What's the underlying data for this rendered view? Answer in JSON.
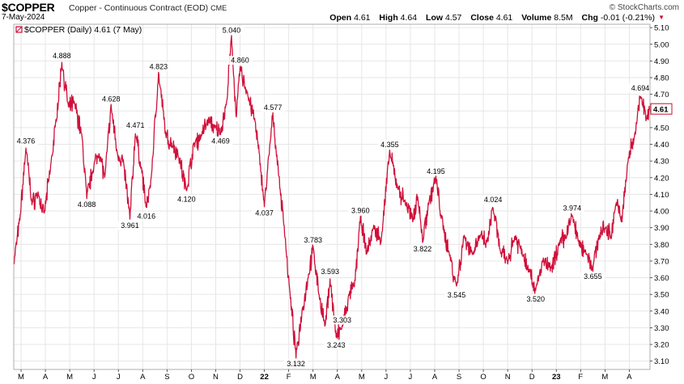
{
  "header": {
    "symbol": "$COPPER",
    "description": "Copper - Continuous Contract (EOD)",
    "exchange": "CME",
    "brand": "© StockCharts.com",
    "date": "7-May-2024",
    "ohlc": {
      "open_label": "Open",
      "open": "4.61",
      "high_label": "High",
      "high": "4.64",
      "low_label": "Low",
      "low": "4.57",
      "close_label": "Close",
      "close": "4.61",
      "volume_label": "Volume",
      "volume": "8.5M",
      "chg_label": "Chg",
      "chg": "-0.01 (-0.21%)"
    }
  },
  "legend": "$COPPER (Daily) 4.61 (7 May)",
  "colors": {
    "line": "#d0103a",
    "grid": "#e6e6e6",
    "axis": "#000000",
    "last_box": "#c8102e"
  },
  "chart_data": {
    "type": "line",
    "series": [
      {
        "name": "$COPPER",
        "anchors": [
          {
            "x": 0.0,
            "y": 3.68
          },
          {
            "x": 0.5,
            "y": 3.95
          },
          {
            "x": 1.0,
            "y": 4.376
          },
          {
            "x": 1.5,
            "y": 4.05
          },
          {
            "x": 2.0,
            "y": 4.1
          },
          {
            "x": 2.5,
            "y": 3.98
          },
          {
            "x": 3.0,
            "y": 4.25
          },
          {
            "x": 3.5,
            "y": 4.55
          },
          {
            "x": 3.95,
            "y": 4.888
          },
          {
            "x": 4.5,
            "y": 4.62
          },
          {
            "x": 5.0,
            "y": 4.65
          },
          {
            "x": 5.6,
            "y": 4.45
          },
          {
            "x": 6.0,
            "y": 4.088
          },
          {
            "x": 6.5,
            "y": 4.25
          },
          {
            "x": 7.0,
            "y": 4.35
          },
          {
            "x": 7.5,
            "y": 4.2
          },
          {
            "x": 8.0,
            "y": 4.628
          },
          {
            "x": 8.5,
            "y": 4.35
          },
          {
            "x": 9.0,
            "y": 4.3
          },
          {
            "x": 9.55,
            "y": 3.961
          },
          {
            "x": 10.0,
            "y": 4.471
          },
          {
            "x": 10.5,
            "y": 4.25
          },
          {
            "x": 10.9,
            "y": 4.016
          },
          {
            "x": 11.3,
            "y": 4.2
          },
          {
            "x": 11.9,
            "y": 4.823
          },
          {
            "x": 12.5,
            "y": 4.45
          },
          {
            "x": 13.0,
            "y": 4.4
          },
          {
            "x": 13.5,
            "y": 4.35
          },
          {
            "x": 14.2,
            "y": 4.12
          },
          {
            "x": 14.8,
            "y": 4.4
          },
          {
            "x": 15.4,
            "y": 4.45
          },
          {
            "x": 16.0,
            "y": 4.55
          },
          {
            "x": 16.5,
            "y": 4.5
          },
          {
            "x": 17.0,
            "y": 4.469
          },
          {
            "x": 17.5,
            "y": 4.65
          },
          {
            "x": 17.9,
            "y": 5.04
          },
          {
            "x": 18.3,
            "y": 4.55
          },
          {
            "x": 18.6,
            "y": 4.86
          },
          {
            "x": 19.2,
            "y": 4.7
          },
          {
            "x": 19.8,
            "y": 4.55
          },
          {
            "x": 20.3,
            "y": 4.25
          },
          {
            "x": 20.6,
            "y": 4.037
          },
          {
            "x": 21.0,
            "y": 4.35
          },
          {
            "x": 21.3,
            "y": 4.577
          },
          {
            "x": 21.8,
            "y": 4.2
          },
          {
            "x": 22.3,
            "y": 3.85
          },
          {
            "x": 22.7,
            "y": 3.5
          },
          {
            "x": 23.2,
            "y": 3.132
          },
          {
            "x": 23.7,
            "y": 3.4
          },
          {
            "x": 24.2,
            "y": 3.6
          },
          {
            "x": 24.6,
            "y": 3.783
          },
          {
            "x": 25.1,
            "y": 3.5
          },
          {
            "x": 25.6,
            "y": 3.3
          },
          {
            "x": 26.0,
            "y": 3.593
          },
          {
            "x": 26.5,
            "y": 3.243
          },
          {
            "x": 27.0,
            "y": 3.303
          },
          {
            "x": 27.6,
            "y": 3.5
          },
          {
            "x": 28.0,
            "y": 3.55
          },
          {
            "x": 28.5,
            "y": 3.96
          },
          {
            "x": 29.0,
            "y": 3.75
          },
          {
            "x": 29.6,
            "y": 3.9
          },
          {
            "x": 30.2,
            "y": 3.82
          },
          {
            "x": 30.9,
            "y": 4.355
          },
          {
            "x": 31.5,
            "y": 4.15
          },
          {
            "x": 32.2,
            "y": 4.05
          },
          {
            "x": 32.8,
            "y": 3.95
          },
          {
            "x": 33.2,
            "y": 4.1
          },
          {
            "x": 33.6,
            "y": 3.822
          },
          {
            "x": 34.1,
            "y": 4.05
          },
          {
            "x": 34.7,
            "y": 4.195
          },
          {
            "x": 35.3,
            "y": 3.9
          },
          {
            "x": 35.8,
            "y": 3.75
          },
          {
            "x": 36.4,
            "y": 3.545
          },
          {
            "x": 37.0,
            "y": 3.85
          },
          {
            "x": 37.7,
            "y": 3.75
          },
          {
            "x": 38.3,
            "y": 3.85
          },
          {
            "x": 38.9,
            "y": 3.8
          },
          {
            "x": 39.4,
            "y": 4.024
          },
          {
            "x": 40.0,
            "y": 3.75
          },
          {
            "x": 40.6,
            "y": 3.7
          },
          {
            "x": 41.2,
            "y": 3.85
          },
          {
            "x": 41.8,
            "y": 3.75
          },
          {
            "x": 42.4,
            "y": 3.65
          },
          {
            "x": 42.9,
            "y": 3.52
          },
          {
            "x": 43.5,
            "y": 3.7
          },
          {
            "x": 44.2,
            "y": 3.65
          },
          {
            "x": 44.8,
            "y": 3.8
          },
          {
            "x": 45.4,
            "y": 3.85
          },
          {
            "x": 45.9,
            "y": 3.974
          },
          {
            "x": 46.5,
            "y": 3.8
          },
          {
            "x": 47.1,
            "y": 3.75
          },
          {
            "x": 47.6,
            "y": 3.655
          },
          {
            "x": 48.1,
            "y": 3.85
          },
          {
            "x": 48.6,
            "y": 3.9
          },
          {
            "x": 49.1,
            "y": 3.85
          },
          {
            "x": 49.5,
            "y": 4.05
          },
          {
            "x": 50.0,
            "y": 3.95
          },
          {
            "x": 50.5,
            "y": 4.3
          },
          {
            "x": 51.0,
            "y": 4.45
          },
          {
            "x": 51.5,
            "y": 4.694
          },
          {
            "x": 52.0,
            "y": 4.55
          },
          {
            "x": 52.3,
            "y": 4.61
          }
        ]
      }
    ],
    "annotations": [
      {
        "x": 1.0,
        "y": 4.376,
        "label": "4.376",
        "pos": "above"
      },
      {
        "x": 3.95,
        "y": 4.888,
        "label": "4.888",
        "pos": "above"
      },
      {
        "x": 6.0,
        "y": 4.088,
        "label": "4.088",
        "pos": "below"
      },
      {
        "x": 8.0,
        "y": 4.628,
        "label": "4.628",
        "pos": "above"
      },
      {
        "x": 9.55,
        "y": 3.961,
        "label": "3.961",
        "pos": "below"
      },
      {
        "x": 10.0,
        "y": 4.471,
        "label": "4.471",
        "pos": "above"
      },
      {
        "x": 10.9,
        "y": 4.016,
        "label": "4.016",
        "pos": "below"
      },
      {
        "x": 11.9,
        "y": 4.823,
        "label": "4.823",
        "pos": "above"
      },
      {
        "x": 14.2,
        "y": 4.12,
        "label": "4.120",
        "pos": "below"
      },
      {
        "x": 17.0,
        "y": 4.469,
        "label": "4.469",
        "pos": "below"
      },
      {
        "x": 17.9,
        "y": 5.04,
        "label": "5.040",
        "pos": "above"
      },
      {
        "x": 18.6,
        "y": 4.86,
        "label": "4.860",
        "pos": "above"
      },
      {
        "x": 20.6,
        "y": 4.037,
        "label": "4.037",
        "pos": "below"
      },
      {
        "x": 21.3,
        "y": 4.577,
        "label": "4.577",
        "pos": "above"
      },
      {
        "x": 23.2,
        "y": 3.132,
        "label": "3.132",
        "pos": "below"
      },
      {
        "x": 24.6,
        "y": 3.783,
        "label": "3.783",
        "pos": "above"
      },
      {
        "x": 26.0,
        "y": 3.593,
        "label": "3.593",
        "pos": "above"
      },
      {
        "x": 26.5,
        "y": 3.243,
        "label": "3.243",
        "pos": "below"
      },
      {
        "x": 27.0,
        "y": 3.303,
        "label": "3.303",
        "pos": "above"
      },
      {
        "x": 28.5,
        "y": 3.96,
        "label": "3.960",
        "pos": "above"
      },
      {
        "x": 30.9,
        "y": 4.355,
        "label": "4.355",
        "pos": "above"
      },
      {
        "x": 33.6,
        "y": 3.822,
        "label": "3.822",
        "pos": "below"
      },
      {
        "x": 34.7,
        "y": 4.195,
        "label": "4.195",
        "pos": "above"
      },
      {
        "x": 36.4,
        "y": 3.545,
        "label": "3.545",
        "pos": "below"
      },
      {
        "x": 39.4,
        "y": 4.024,
        "label": "4.024",
        "pos": "above"
      },
      {
        "x": 42.9,
        "y": 3.52,
        "label": "3.520",
        "pos": "below"
      },
      {
        "x": 45.9,
        "y": 3.974,
        "label": "3.974",
        "pos": "above"
      },
      {
        "x": 47.6,
        "y": 3.655,
        "label": "3.655",
        "pos": "below"
      },
      {
        "x": 51.5,
        "y": 4.694,
        "label": "4.694",
        "pos": "above"
      }
    ],
    "last_value": "4.61",
    "y_ticks": [
      "3.10",
      "3.20",
      "3.30",
      "3.40",
      "3.50",
      "3.60",
      "3.70",
      "3.80",
      "3.90",
      "4.00",
      "4.10",
      "4.20",
      "4.30",
      "4.40",
      "4.50",
      "4.60",
      "4.70",
      "4.80",
      "4.90",
      "5.00",
      "5.10"
    ],
    "ylim": [
      3.05,
      5.12
    ],
    "xlim": [
      0,
      52.3
    ],
    "x_ticks": [
      {
        "x": 0.6,
        "label": "M",
        "bold": false
      },
      {
        "x": 2.6,
        "label": "A",
        "bold": false
      },
      {
        "x": 4.6,
        "label": "M",
        "bold": false
      },
      {
        "x": 6.6,
        "label": "J",
        "bold": false
      },
      {
        "x": 8.6,
        "label": "J",
        "bold": false
      },
      {
        "x": 10.6,
        "label": "A",
        "bold": false
      },
      {
        "x": 12.6,
        "label": "S",
        "bold": false
      },
      {
        "x": 14.6,
        "label": "O",
        "bold": false
      },
      {
        "x": 16.6,
        "label": "N",
        "bold": false
      },
      {
        "x": 18.6,
        "label": "D",
        "bold": false
      },
      {
        "x": 20.6,
        "label": "22",
        "bold": true
      },
      {
        "x": 22.6,
        "label": "F",
        "bold": false
      },
      {
        "x": 24.6,
        "label": "M",
        "bold": false
      },
      {
        "x": 26.6,
        "label": "A",
        "bold": false
      },
      {
        "x": 28.6,
        "label": "M",
        "bold": false
      },
      {
        "x": 30.6,
        "label": "J",
        "bold": false
      },
      {
        "x": 32.6,
        "label": "J",
        "bold": false
      },
      {
        "x": 34.6,
        "label": "A",
        "bold": false
      },
      {
        "x": 36.6,
        "label": "S",
        "bold": false
      },
      {
        "x": 38.6,
        "label": "O",
        "bold": false
      },
      {
        "x": 40.6,
        "label": "N",
        "bold": false
      },
      {
        "x": 42.6,
        "label": "D",
        "bold": false
      },
      {
        "x": 44.6,
        "label": "23",
        "bold": true
      },
      {
        "x": 46.6,
        "label": "F",
        "bold": false
      },
      {
        "x": 48.6,
        "label": "M",
        "bold": false
      },
      {
        "x": 50.6,
        "label": "A",
        "bold": false
      }
    ]
  }
}
